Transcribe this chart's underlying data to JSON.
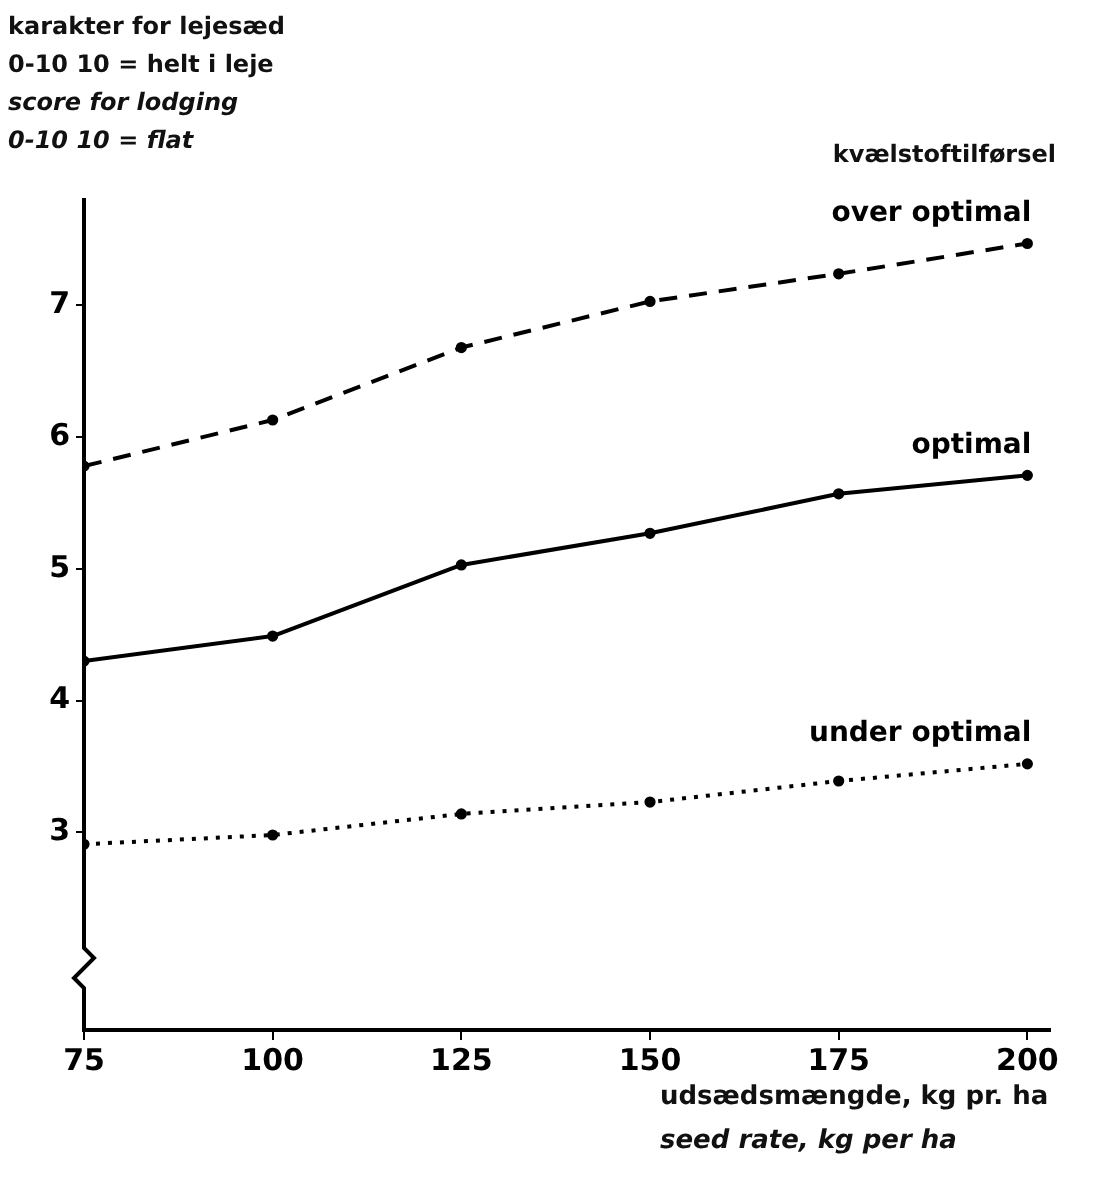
{
  "chart_data": {
    "type": "line",
    "ylabel": "karakter for lejesæd\n0-10  10 = helt i leje\nscore for lodging\n0-10  10 = flat",
    "xlabel": "udsædsmængde, kg pr. ha\nseed rate, kg per ha",
    "legend_title": "kvælstoftilførsel",
    "x": [
      75,
      100,
      125,
      150,
      175,
      200
    ],
    "series": [
      {
        "name": "over optimal",
        "color": "#000000",
        "line_style": "dashed",
        "values": [
          5.78,
          6.13,
          6.68,
          7.03,
          7.24,
          7.47
        ]
      },
      {
        "name": "optimal",
        "color": "#000000",
        "line_style": "solid",
        "values": [
          4.3,
          4.49,
          5.03,
          5.27,
          5.57,
          5.71
        ]
      },
      {
        "name": "under optimal",
        "color": "#000000",
        "line_style": "dotted",
        "values": [
          2.91,
          2.98,
          3.14,
          3.23,
          3.39,
          3.52
        ]
      }
    ],
    "xlim": [
      75,
      203
    ],
    "xticks": [
      75,
      100,
      125,
      150,
      175,
      200
    ],
    "ylim": [
      1.5,
      7.8
    ],
    "yticks": [
      3,
      4,
      5,
      6,
      7
    ],
    "grid": false,
    "legend": false,
    "marker": "circle"
  }
}
